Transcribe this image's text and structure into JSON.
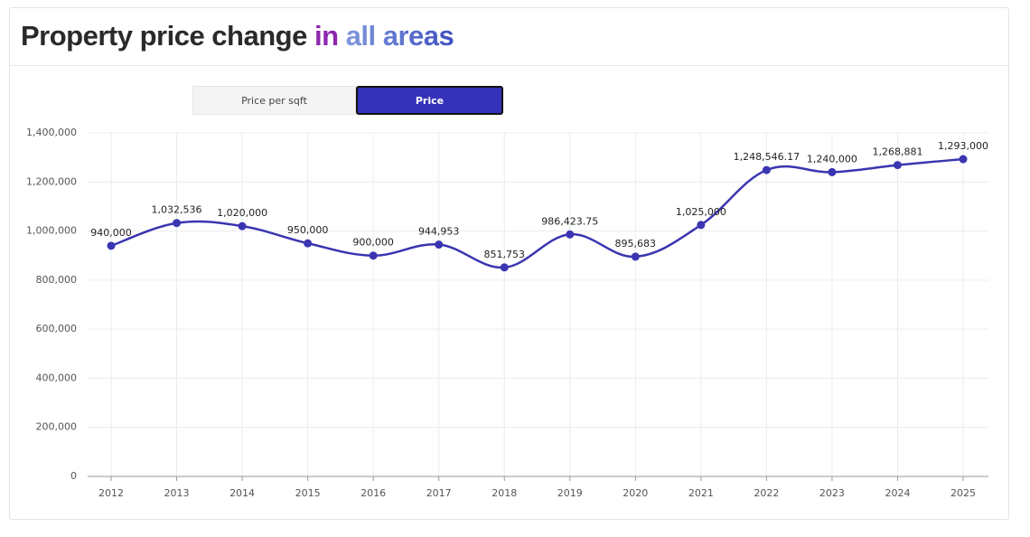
{
  "chart_data": {
    "type": "line",
    "title": [
      "Property price change",
      "in",
      "all areas"
    ],
    "toggle_options": [
      "Price per sqft",
      "Price"
    ],
    "active_toggle": 1,
    "categories": [
      "2012",
      "2013",
      "2014",
      "2015",
      "2016",
      "2017",
      "2018",
      "2019",
      "2020",
      "2021",
      "2022",
      "2023",
      "2024",
      "2025"
    ],
    "series": [
      {
        "name": "Price",
        "color": "#3a35b0",
        "values": [
          940000,
          1032536,
          1020000,
          950000,
          900000,
          944953,
          851753,
          986423.75,
          895683,
          1025000,
          1248546.17,
          1240000,
          1268881,
          1293000
        ],
        "value_labels": [
          "940,000",
          "1,032,536",
          "1,020,000",
          "950,000",
          "900,000",
          "944,953",
          "851,753",
          "986,423.75",
          "895,683",
          "1,025,000",
          "1,248,546.17",
          "1,240,000",
          "1,268,881",
          "1,293,000"
        ]
      }
    ],
    "ylim": [
      0,
      1400000
    ],
    "yticks": [
      0,
      {
        "value": 200000,
        "label": "200,000"
      },
      {
        "value": 400000,
        "label": "400,000"
      },
      {
        "value": 600000,
        "label": "600,000"
      },
      {
        "value": 800000,
        "label": "800,000"
      },
      {
        "value": 1000000,
        "label": "1,000,000"
      },
      {
        "value": 1200000,
        "label": "1,200,000"
      },
      {
        "value": 1400000,
        "label": "1,400,000"
      }
    ],
    "grid": true
  }
}
